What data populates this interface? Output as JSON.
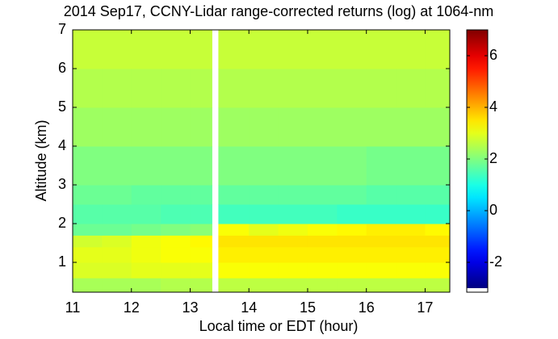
{
  "chart_data": {
    "type": "heatmap",
    "title": "2014 Sep17, CCNY-Lidar range-corrected returns (log) at 1064-nm",
    "x_label": "Local time or EDT (hour)",
    "y_label": "Altitude (km)",
    "colormap": "jet",
    "x_edges": [
      11,
      11.5,
      12,
      12.5,
      13,
      13.37,
      13.48,
      14,
      14.5,
      15,
      15.5,
      16,
      16.5,
      17,
      17.42
    ],
    "y_edges": [
      0.23,
      0.6,
      1.0,
      1.4,
      1.7,
      2.0,
      2.5,
      3,
      4,
      5,
      6,
      7
    ],
    "z": [
      [
        2.4,
        2.4,
        2.4,
        2.5,
        2.5,
        null,
        2.6,
        2.6,
        2.6,
        2.6,
        2.6,
        2.6,
        2.6,
        2.6
      ],
      [
        2.9,
        2.9,
        3.0,
        3.0,
        3.0,
        null,
        3.2,
        3.2,
        3.2,
        3.2,
        3.2,
        3.2,
        3.2,
        3.2
      ],
      [
        3.0,
        3.0,
        3.1,
        3.2,
        3.2,
        null,
        3.4,
        3.4,
        3.4,
        3.4,
        3.4,
        3.4,
        3.4,
        3.4
      ],
      [
        2.8,
        2.9,
        3.1,
        3.2,
        3.3,
        null,
        3.5,
        3.5,
        3.5,
        3.5,
        3.5,
        3.5,
        3.5,
        3.5
      ],
      [
        1.8,
        1.8,
        1.9,
        2.0,
        2.1,
        null,
        3.2,
        3.0,
        3.1,
        3.2,
        3.3,
        3.4,
        3.4,
        3.3
      ],
      [
        1.6,
        1.6,
        1.6,
        1.5,
        1.5,
        null,
        1.4,
        1.4,
        1.4,
        1.4,
        1.3,
        1.3,
        1.3,
        1.3
      ],
      [
        1.8,
        1.8,
        1.7,
        1.7,
        1.7,
        null,
        1.7,
        1.7,
        1.7,
        1.7,
        1.7,
        1.6,
        1.6,
        1.6
      ],
      [
        2.0,
        2.0,
        2.0,
        2.0,
        2.0,
        null,
        2.0,
        2.0,
        2.0,
        2.0,
        2.0,
        1.9,
        1.9,
        1.9
      ],
      [
        2.3,
        2.3,
        2.3,
        2.3,
        2.3,
        null,
        2.3,
        2.3,
        2.3,
        2.3,
        2.3,
        2.3,
        2.3,
        2.3
      ],
      [
        2.5,
        2.5,
        2.5,
        2.5,
        2.5,
        null,
        2.5,
        2.5,
        2.5,
        2.5,
        2.5,
        2.5,
        2.5,
        2.5
      ],
      [
        2.7,
        2.7,
        2.7,
        2.7,
        2.7,
        null,
        2.7,
        2.7,
        2.7,
        2.7,
        2.7,
        2.7,
        2.7,
        2.7
      ]
    ],
    "xlim": [
      11,
      17.42
    ],
    "ylim": [
      0.23,
      7
    ],
    "xticks": [
      11,
      12,
      13,
      14,
      15,
      16,
      17
    ],
    "yticks": [
      1,
      2,
      3,
      4,
      5,
      6,
      7
    ],
    "clim": [
      -3,
      7
    ],
    "cticks": [
      -2,
      0,
      2,
      4,
      6
    ]
  }
}
